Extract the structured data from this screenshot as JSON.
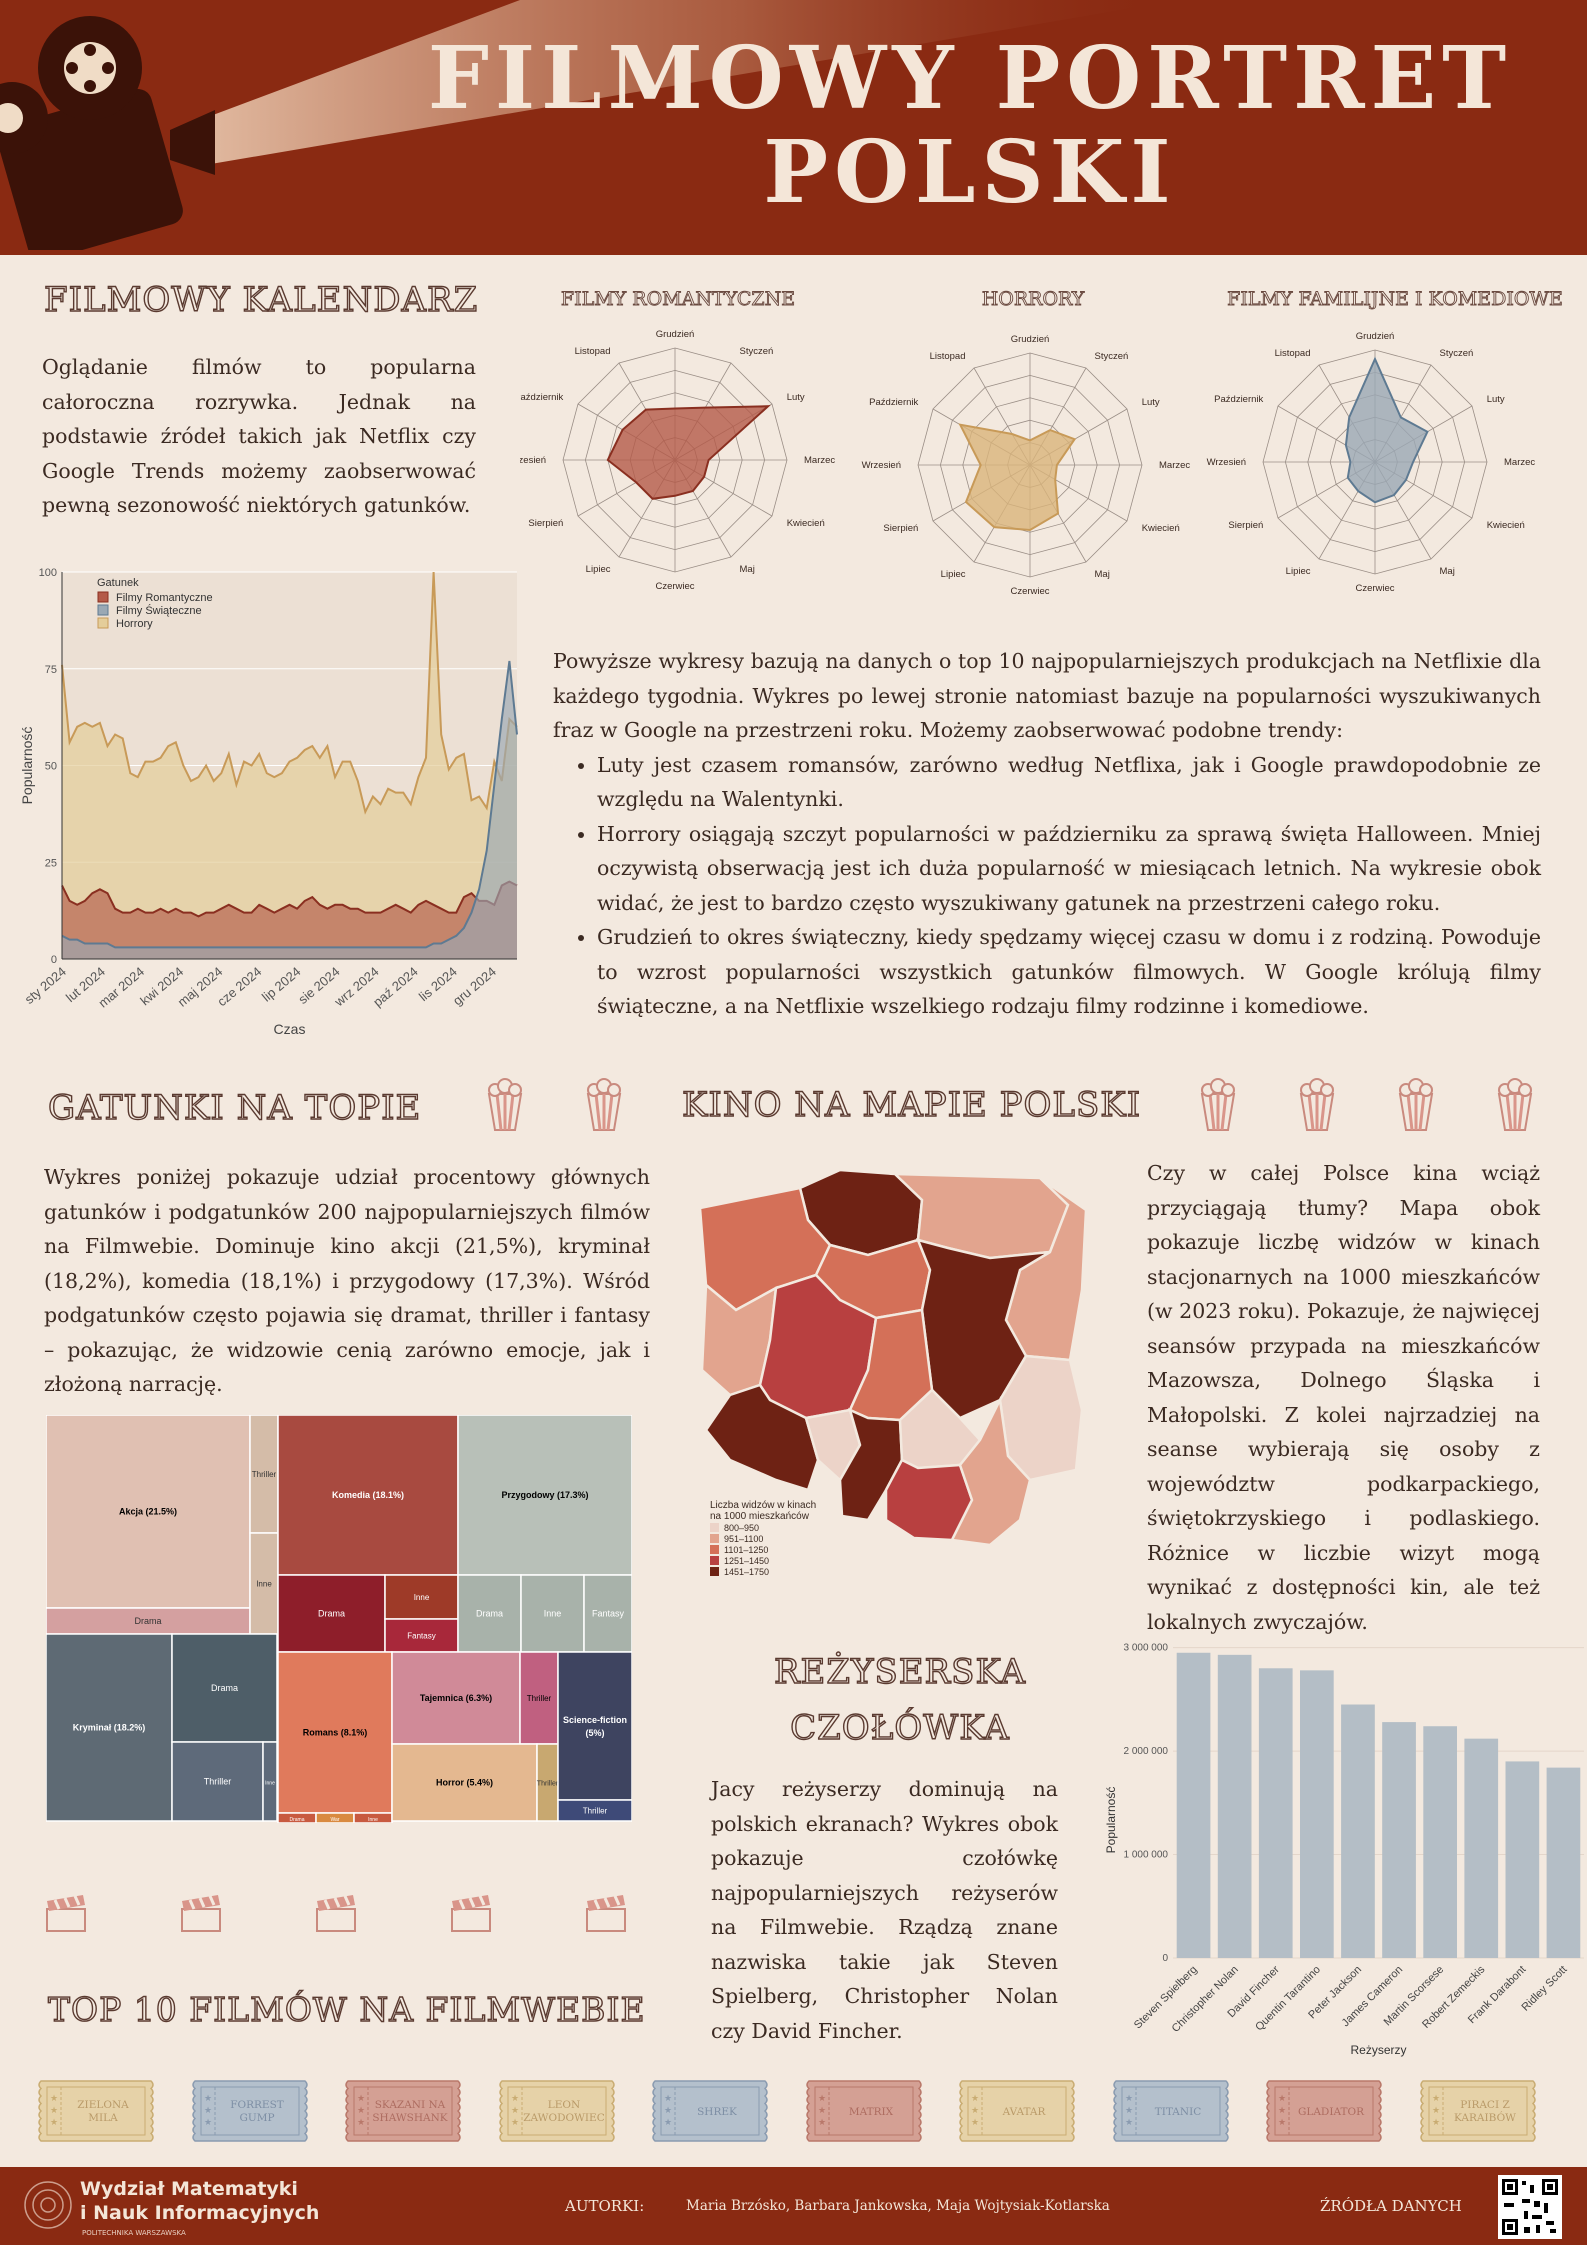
{
  "header": {
    "title": "FILMOWY PORTRET POLSKI",
    "title_line1": "FILMOWY PORTRET",
    "title_line2": "POLSKI"
  },
  "calendar": {
    "title": "FILMOWY KALENDARZ",
    "intro": "Oglądanie filmów to popularna całoroczna rozrywka. Jednak na podstawie źródeł takich jak Netflix czy Google Trends możemy zaobserwować pewną sezonowość niektórych gatunków.",
    "radar_titles": [
      "FILMY ROMANTYCZNE",
      "HORRORY",
      "FILMY FAMILIJNE I KOMEDIOWE"
    ],
    "description": "Powyższe wykresy bazują na danych o top 10 najpopularniejszych produkcjach na Netflixie dla każdego tygodnia. Wykres po lewej stronie natomiast bazuje na popularności wyszukiwanych fraz w Google na przestrzeni roku. Możemy zaobserwować podobne trendy:",
    "bullets": [
      "Luty jest czasem romansów, zarówno według Netflixa, jak i Google prawdopodobnie ze względu na Walentynki.",
      "Horrory osiągają szczyt popularności w październiku za sprawą święta Halloween. Mniej oczywistą obserwacją jest ich duża popularność w miesiącach letnich. Na wykresie obok widać, że jest to bardzo często wyszukiwany gatunek na przestrzeni całego roku.",
      "Grudzień to okres świąteczny, kiedy spędzamy więcej czasu w domu i z rodziną. Powoduje to wzrost popularności wszystkich gatunków filmowych. W Google królują filmy świąteczne, a na Netflixie wszelkiego rodzaju filmy rodzinne i komediowe."
    ]
  },
  "genres": {
    "title": "GATUNKI NA TOPIE",
    "text": "Wykres poniżej pokazuje udział procentowy głównych gatunków i podgatunków  200 najpopularniejszych filmów na Filmwebie. Dominuje kino akcji (21,5%), kryminał (18,2%), komedia (18,1%) i przygodowy (17,3%). Wśród podgatunków często pojawia się dramat, thriller i fantasy – pokazując, że widzowie cenią zarówno emocje, jak i złożoną narrację."
  },
  "map": {
    "title": "KINO NA MAPIE POLSKI",
    "text": "Czy w całej Polsce kina wciąż przyciągają tłumy? Mapa obok pokazuje liczbę widzów w kinach stacjonarnych na 1000 mieszkańców (w 2023 roku). Pokazuje, że najwięcej seansów przypada na mieszkańców Mazowsza, Dolnego Śląska i Małopolski. Z kolei najrzadziej na seanse wybierają się osoby z województw podkarpackiego, świętokrzyskiego i podlaskiego. Różnice w liczbie wizyt mogą wynikać z dostępności kin, ale też lokalnych zwyczajów.",
    "legend_title_1": "Liczba widzów w kinach",
    "legend_title_2": "na 1000 mieszkańców",
    "legend": [
      {
        "label": "800–950",
        "color": "#ecd3c8"
      },
      {
        "label": "951–1100",
        "color": "#e2a48e"
      },
      {
        "label": "1101–1250",
        "color": "#d47058"
      },
      {
        "label": "1251–1450",
        "color": "#b84040"
      },
      {
        "label": "1451–1750",
        "color": "#6e2214"
      }
    ]
  },
  "directors": {
    "title_1": "REŻYSERSKA",
    "title_2": "CZOŁÓWKA",
    "text": "Jacy reżyserzy dominują na polskich ekranach? Wykres obok pokazuje czołówkę najpopularniejszych reżyserów na Filmwebie. Rządzą znane nazwiska takie jak Steven Spielberg, Christopher Nolan czy David Fincher."
  },
  "top10": {
    "title": "TOP 10 FILMÓW NA FILMWEBIE",
    "tickets": [
      {
        "l1": "ZIELONA",
        "l2": "MILA",
        "color": "#e6d2a8",
        "stroke": "#c9ac72",
        "text": "#b99a68"
      },
      {
        "l1": "FORREST",
        "l2": "GUMP",
        "color": "#b4c0cc",
        "stroke": "#8a9bb0",
        "text": "#7d8ea4"
      },
      {
        "l1": "SKAZANI NA",
        "l2": "SHAWSHANK",
        "color": "#d4a094",
        "stroke": "#b9786a",
        "text": "#ad6c60"
      },
      {
        "l1": "LEON",
        "l2": "ZAWODOWIEC",
        "color": "#e6d2a8",
        "stroke": "#c9ac72",
        "text": "#b99a68"
      },
      {
        "l1": "SHREK",
        "l2": "",
        "color": "#b4c0cc",
        "stroke": "#8a9bb0",
        "text": "#7d8ea4"
      },
      {
        "l1": "MATRIX",
        "l2": "",
        "color": "#d4a094",
        "stroke": "#b9786a",
        "text": "#ad6c60"
      },
      {
        "l1": "AVATAR",
        "l2": "",
        "color": "#e6d2a8",
        "stroke": "#c9ac72",
        "text": "#b99a68"
      },
      {
        "l1": "TITANIC",
        "l2": "",
        "color": "#b4c0cc",
        "stroke": "#8a9bb0",
        "text": "#7d8ea4"
      },
      {
        "l1": "GLADIATOR",
        "l2": "",
        "color": "#d4a094",
        "stroke": "#b9786a",
        "text": "#ad6c60"
      },
      {
        "l1": "PIRACI Z",
        "l2": "KARAIBÓW",
        "color": "#e6d2a8",
        "stroke": "#c9ac72",
        "text": "#b99a68"
      }
    ]
  },
  "footer": {
    "logo_line1": "Wydział Matematyki",
    "logo_line2": "i Nauk Informacyjnych",
    "logo_line3": "POLITECHNIKA WARSZAWSKA",
    "authors_label": "AUTORKI:",
    "authors": "Maria Brzósko, Barbara Jankowska, Maja Wojtysiak-Kotlarska",
    "sources": "ŹRÓDŁA DANYCH"
  },
  "chart_data": [
    {
      "id": "radar",
      "type": "radar",
      "axes": [
        "Grudzień",
        "Styczeń",
        "Luty",
        "Marzec",
        "Kwiecień",
        "Maj",
        "Czerwiec",
        "Lipiec",
        "Sierpień",
        "Wrzesień",
        "Październik",
        "Listopad"
      ],
      "max": 5,
      "charts": [
        {
          "title": "FILMY ROMANTYCZNE",
          "values": [
            2.3,
            2.7,
            4.8,
            1.5,
            1.5,
            1.6,
            1.6,
            2.0,
            2.0,
            3.0,
            2.7,
            2.6
          ],
          "color": "#b45a48",
          "stroke": "#8a2f20"
        },
        {
          "title": "HORRORY",
          "values": [
            1.1,
            1.8,
            2.3,
            1.2,
            1.3,
            2.5,
            2.9,
            3.2,
            3.3,
            2.2,
            3.6,
            1.6
          ],
          "color": "#d9b47a",
          "stroke": "#c89a58"
        },
        {
          "title": "FILMY FAMILIJNE I KOMEDIOWE",
          "values": [
            4.6,
            2.3,
            2.7,
            1.7,
            1.6,
            1.7,
            1.8,
            1.5,
            1.4,
            1.1,
            1.5,
            2.3
          ],
          "color": "#9aa8b4",
          "stroke": "#5e7a92"
        }
      ]
    },
    {
      "id": "trends",
      "type": "area",
      "xlabel": "Czas",
      "ylabel": "Popularność",
      "ylim": [
        0,
        100
      ],
      "yticks": [
        0,
        25,
        50,
        75,
        100
      ],
      "xticks": [
        "sty 2024",
        "lut 2024",
        "mar 2024",
        "kwi 2024",
        "maj 2024",
        "cze 2024",
        "lip 2024",
        "sie 2024",
        "wrz 2024",
        "paź 2024",
        "lis 2024",
        "gru 2024"
      ],
      "legend_title": "Gatunek",
      "series": [
        {
          "name": "Filmy Romantyczne",
          "color": "#b45a48",
          "stroke": "#8a2f20",
          "values": [
            19,
            15,
            14,
            15,
            17,
            18,
            17,
            13,
            12,
            12,
            13,
            12,
            12,
            13,
            12,
            13,
            12,
            12,
            11,
            12,
            12,
            13,
            14,
            13,
            12,
            12,
            14,
            13,
            12,
            13,
            14,
            13,
            15,
            16,
            14,
            13,
            14,
            14,
            13,
            13,
            12,
            12,
            12,
            13,
            14,
            13,
            12,
            14,
            15,
            14,
            13,
            12,
            12,
            16,
            17,
            15,
            15,
            14,
            19,
            20,
            19
          ]
        },
        {
          "name": "Filmy Świąteczne",
          "color": "#9aa8b4",
          "stroke": "#5e7a92",
          "values": [
            6,
            5,
            5,
            4,
            4,
            4,
            4,
            3,
            3,
            3,
            3,
            3,
            3,
            3,
            3,
            3,
            3,
            3,
            3,
            3,
            3,
            3,
            3,
            3,
            3,
            3,
            3,
            3,
            3,
            3,
            3,
            3,
            3,
            3,
            3,
            3,
            3,
            3,
            3,
            3,
            3,
            3,
            3,
            3,
            3,
            3,
            3,
            3,
            3,
            4,
            4,
            5,
            6,
            8,
            12,
            18,
            28,
            45,
            62,
            77,
            58
          ]
        },
        {
          "name": "Horrory",
          "color": "#e4cd9a",
          "stroke": "#c89a58",
          "values": [
            76,
            56,
            60,
            61,
            60,
            61,
            55,
            58,
            57,
            48,
            47,
            51,
            51,
            52,
            55,
            56,
            50,
            46,
            47,
            50,
            46,
            48,
            53,
            45,
            51,
            50,
            53,
            48,
            47,
            48,
            51,
            52,
            54,
            55,
            52,
            55,
            47,
            51,
            51,
            46,
            38,
            42,
            40,
            44,
            43,
            43,
            40,
            47,
            52,
            100,
            58,
            49,
            52,
            53,
            41,
            42,
            39,
            51,
            46,
            62,
            60
          ]
        }
      ]
    },
    {
      "id": "treemap",
      "type": "treemap",
      "groups": [
        {
          "name": "Akcja (21,5%)",
          "color": "#e0c0b2",
          "children": [
            {
              "name": "Akcja (21.5%)"
            },
            {
              "name": "Drama"
            },
            {
              "name": "Thriller"
            },
            {
              "name": "Inne"
            }
          ]
        },
        {
          "name": "Kryminał (18,2%)",
          "color": "#5e6a74",
          "children": [
            {
              "name": "Kryminał (18.2%)"
            },
            {
              "name": "Drama"
            },
            {
              "name": "Thriller"
            },
            {
              "name": "Inne"
            }
          ]
        },
        {
          "name": "Komedia (18,1%)",
          "color": "#a84a40",
          "children": [
            {
              "name": "Komedia (18.1%)"
            },
            {
              "name": "Drama"
            },
            {
              "name": "Inne"
            },
            {
              "name": "Fantasy"
            }
          ]
        },
        {
          "name": "Przygodowy (17,3%)",
          "color": "#b8c0b8",
          "children": [
            {
              "name": "Przygodowy (17.3%)"
            },
            {
              "name": "Drama"
            },
            {
              "name": "Inne"
            },
            {
              "name": "Fantasy"
            }
          ]
        },
        {
          "name": "Romans (8,1%)",
          "color": "#e07a5c",
          "children": [
            {
              "name": "Romans (8.1%)"
            },
            {
              "name": "Drama"
            },
            {
              "name": "War"
            },
            {
              "name": "Inne"
            }
          ]
        },
        {
          "name": "Tajemnica (6,3%)",
          "color": "#d08a98",
          "children": [
            {
              "name": "Tajemnica (6.3%)"
            },
            {
              "name": "Thriller"
            }
          ]
        },
        {
          "name": "Horror (5,4%)",
          "color": "#e4b890",
          "children": [
            {
              "name": "Horror (5.4%)"
            },
            {
              "name": "Thriller"
            }
          ]
        },
        {
          "name": "Science-fiction (5%)",
          "color": "#3e4460",
          "children": [
            {
              "name": "Science-fiction (5%)"
            },
            {
              "name": "Thriller"
            }
          ]
        }
      ]
    },
    {
      "id": "directors",
      "type": "bar",
      "xlabel": "Reżyserzy",
      "ylabel": "Popularność",
      "ylim": [
        0,
        3000000
      ],
      "yticks": [
        {
          "v": 0,
          "label": "0"
        },
        {
          "v": 1000000,
          "label": "1 000 000"
        },
        {
          "v": 2000000,
          "label": "2 000 000"
        },
        {
          "v": 3000000,
          "label": "3 000 000"
        }
      ],
      "categories": [
        "Steven Spielberg",
        "Christopher Nolan",
        "David Fincher",
        "Quentin Tarantino",
        "Peter Jackson",
        "James Cameron",
        "Martin Scorsese",
        "Robert Zemeckis",
        "Frank Darabont",
        "Ridley Scott"
      ],
      "values": [
        2950000,
        2930000,
        2800000,
        2780000,
        2450000,
        2280000,
        2240000,
        2120000,
        1900000,
        1840000
      ],
      "color": "#b4bec6"
    }
  ]
}
